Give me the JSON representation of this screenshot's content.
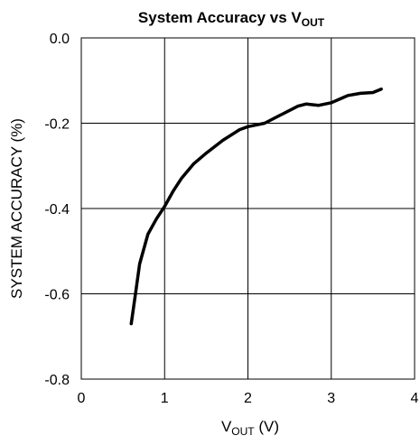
{
  "chart_data": {
    "type": "line",
    "title": {
      "main": "System Accuracy vs V",
      "sub": "OUT"
    },
    "xlabel": {
      "main": "V",
      "sub": "OUT",
      "suffix": " (V)"
    },
    "ylabel": "SYSTEM ACCURACY (%)",
    "xlim": [
      0,
      4
    ],
    "ylim": [
      -0.8,
      0.0
    ],
    "grid": true,
    "x_ticks": [
      {
        "value": 0,
        "label": "0"
      },
      {
        "value": 1,
        "label": "1"
      },
      {
        "value": 2,
        "label": "2"
      },
      {
        "value": 3,
        "label": "3"
      },
      {
        "value": 4,
        "label": "4"
      }
    ],
    "y_ticks": [
      {
        "value": 0.0,
        "label": "0.0"
      },
      {
        "value": -0.2,
        "label": "-0.2"
      },
      {
        "value": -0.4,
        "label": "-0.4"
      },
      {
        "value": -0.6,
        "label": "-0.6"
      },
      {
        "value": -0.8,
        "label": "-0.8"
      }
    ],
    "series": [
      {
        "x": [
          0.6,
          0.65,
          0.7,
          0.8,
          0.9,
          1.0,
          1.1,
          1.2,
          1.35,
          1.5,
          1.7,
          1.9,
          2.0,
          2.2,
          2.4,
          2.6,
          2.7,
          2.85,
          3.0,
          3.2,
          3.35,
          3.5,
          3.6
        ],
        "y": [
          -0.67,
          -0.6,
          -0.53,
          -0.46,
          -0.425,
          -0.395,
          -0.36,
          -0.33,
          -0.295,
          -0.27,
          -0.24,
          -0.215,
          -0.208,
          -0.2,
          -0.18,
          -0.16,
          -0.155,
          -0.158,
          -0.152,
          -0.135,
          -0.13,
          -0.128,
          -0.12
        ]
      }
    ],
    "colors": {
      "line": "#000000",
      "grid": "#000000",
      "background": "#ffffff"
    }
  }
}
